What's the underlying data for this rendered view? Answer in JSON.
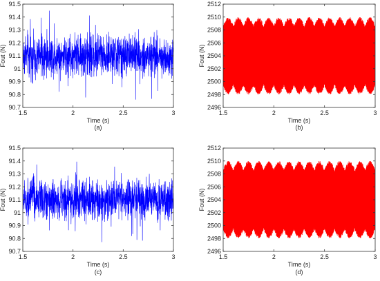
{
  "chart_data": [
    {
      "type": "line",
      "caption": "(a)",
      "xlabel": "Time (s)",
      "ylabel": "Fout (N)",
      "xlim": [
        1.5,
        3
      ],
      "ylim": [
        90.7,
        91.5
      ],
      "xticks": [
        "1.5",
        "2",
        "2.5",
        "3"
      ],
      "yticks": [
        "90.7",
        "90.8",
        "90.9",
        "91",
        "91.1",
        "91.2",
        "91.3",
        "91.4",
        "91.5"
      ],
      "color": "#0000ff",
      "series": [
        {
          "values_summary": {
            "mean": 91.1,
            "band_low": 90.96,
            "band_high": 91.25,
            "min": 90.75,
            "max": 91.46
          }
        }
      ]
    },
    {
      "type": "line",
      "caption": "(b)",
      "xlabel": "Time (s)",
      "ylabel": "Fout (N)",
      "xlim": [
        1.5,
        3
      ],
      "ylim": [
        2496,
        2512
      ],
      "xticks": [
        "1.5",
        "2",
        "2.5",
        "3"
      ],
      "yticks": [
        "2496",
        "2498",
        "2500",
        "2502",
        "2504",
        "2506",
        "2508",
        "2510",
        "2512"
      ],
      "color": "#ff0000",
      "series": [
        {
          "values_summary": {
            "mean": 2504,
            "min": 2498,
            "max": 2510
          }
        }
      ]
    },
    {
      "type": "line",
      "caption": "(c)",
      "xlabel": "Time (s)",
      "ylabel": "Fout (N)",
      "xlim": [
        1.5,
        3
      ],
      "ylim": [
        90.7,
        91.5
      ],
      "xticks": [
        "1.5",
        "2",
        "2.5",
        "3"
      ],
      "yticks": [
        "90.7",
        "90.8",
        "90.9",
        "91",
        "91.1",
        "91.2",
        "91.3",
        "91.4",
        "91.5"
      ],
      "color": "#0000ff",
      "series": [
        {
          "values_summary": {
            "mean": 91.1,
            "band_low": 90.97,
            "band_high": 91.25,
            "min": 90.75,
            "max": 91.44
          }
        }
      ]
    },
    {
      "type": "line",
      "caption": "(d)",
      "xlabel": "Time (s)",
      "ylabel": "Fout (N)",
      "xlim": [
        1.5,
        3
      ],
      "ylim": [
        2496,
        2512
      ],
      "xticks": [
        "1.5",
        "2",
        "2.5",
        "3"
      ],
      "yticks": [
        "2496",
        "2498",
        "2500",
        "2502",
        "2504",
        "2506",
        "2508",
        "2510",
        "2512"
      ],
      "color": "#ff0000",
      "series": [
        {
          "values_summary": {
            "mean": 2504,
            "min": 2498,
            "max": 2510
          }
        }
      ]
    }
  ]
}
